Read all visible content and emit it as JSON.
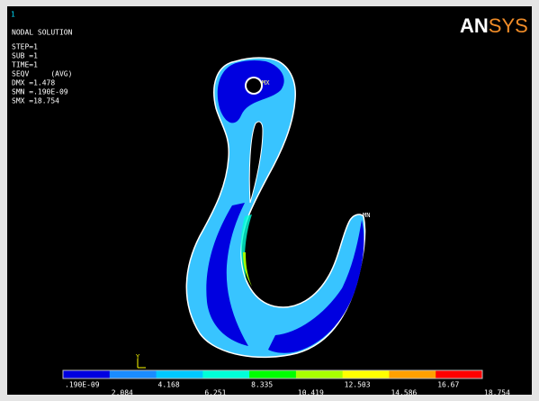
{
  "window_number": "1",
  "title": "NODAL SOLUTION",
  "info": [
    "STEP=1",
    "SUB =1",
    "TIME=1",
    "SEQV     (AVG)",
    "DMX =1.478",
    "SMN =.190E-09",
    "SMX =18.754"
  ],
  "logo": {
    "left": "AN",
    "right": "SYS"
  },
  "markers": {
    "max": "MX",
    "min": "MN",
    "axis": "Y"
  },
  "legend": {
    "colors": [
      "#0000e0",
      "#1a8cff",
      "#00c8ff",
      "#00ffd8",
      "#00ff00",
      "#a8ff00",
      "#ffff00",
      "#ffa000",
      "#ff0000"
    ],
    "labels": [
      ".190E-09",
      "2.084",
      "4.168",
      "6.251",
      "8.335",
      "10.419",
      "12.503",
      "14.586",
      "16.67",
      "18.754"
    ]
  }
}
